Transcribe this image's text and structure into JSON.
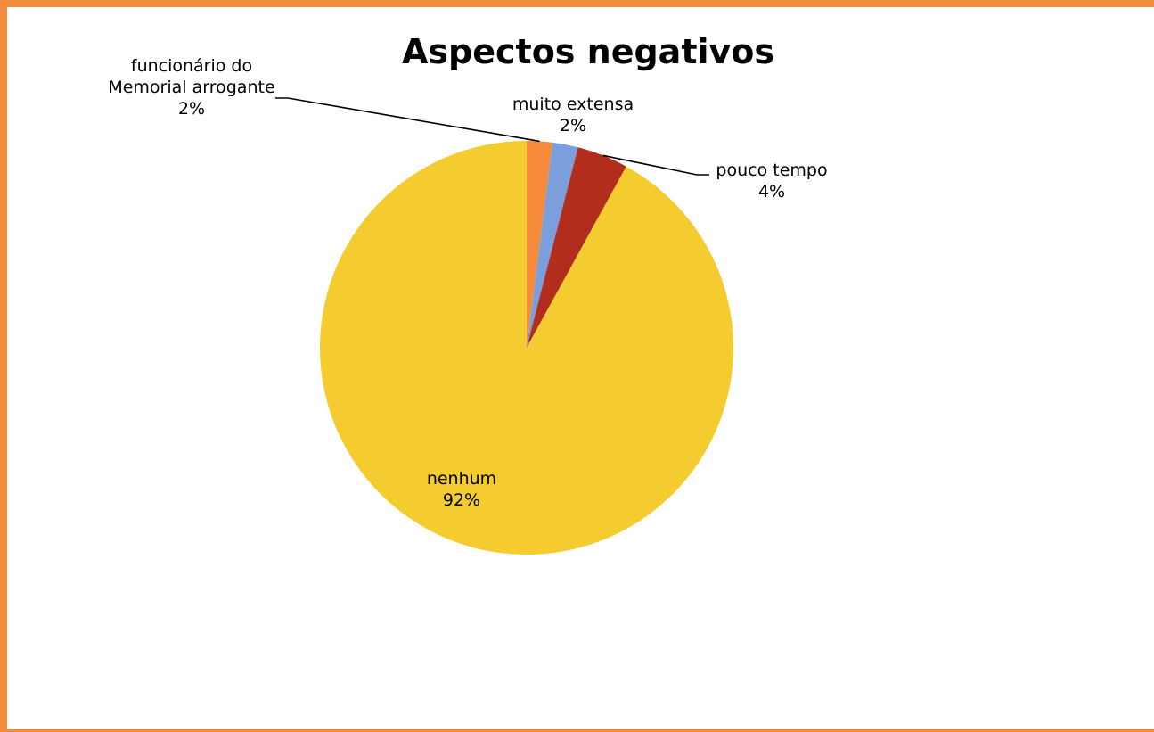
{
  "chart_data": {
    "type": "pie",
    "title": "Aspectos negativos",
    "categories": [
      "funcionário do Memorial arrogante",
      "muito extensa",
      "pouco tempo",
      "nenhum"
    ],
    "values": [
      2,
      2,
      4,
      92
    ],
    "labels": [
      {
        "lines": [
          "funcionário do",
          "Memorial arrogante"
        ],
        "percent": "2%"
      },
      {
        "lines": [
          "muito extensa"
        ],
        "percent": "2%"
      },
      {
        "lines": [
          "pouco tempo"
        ],
        "percent": "4%"
      },
      {
        "lines": [
          "nenhum"
        ],
        "percent": "92%"
      }
    ],
    "colors": [
      "#f58b3a",
      "#7a9fdc",
      "#b22d1b",
      "#f4cc30"
    ],
    "start_angle": "12 o'clock",
    "direction": "clockwise",
    "legend": "none"
  }
}
